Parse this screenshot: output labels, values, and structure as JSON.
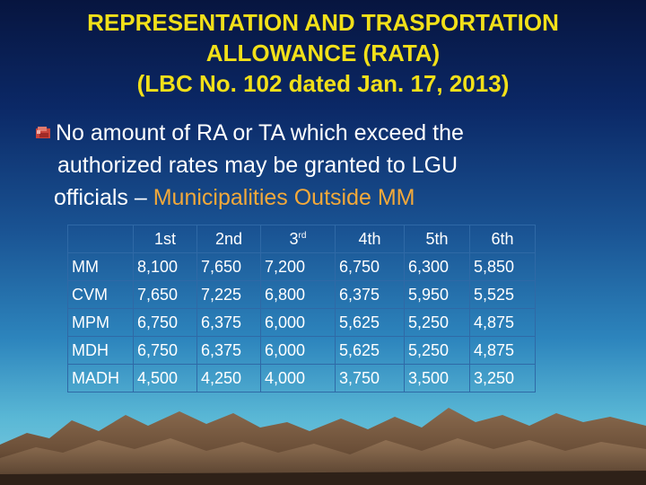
{
  "title": {
    "line1": "REPRESENTATION AND TRASPORTATION",
    "line2": "ALLOWANCE (RATA)",
    "line3": "(LBC No. 102 dated Jan. 17, 2013)"
  },
  "bullet": {
    "icon": "bullet-icon",
    "line1": "No amount of RA or TA which exceed the",
    "line2": "authorized rates may be granted to LGU",
    "line3_prefix": "officials – ",
    "line3_highlight": "Municipalities Outside MM"
  },
  "colors": {
    "title": "#f2e019",
    "text": "#ffffff",
    "highlight": "#f3a93a",
    "table_border": "#2f69a6"
  },
  "table": {
    "headers": [
      {
        "text": "1st",
        "sup": ""
      },
      {
        "text": "2nd",
        "sup": ""
      },
      {
        "text": "3",
        "sup": "rd"
      },
      {
        "text": "4th",
        "sup": ""
      },
      {
        "text": "5th",
        "sup": ""
      },
      {
        "text": "6th",
        "sup": ""
      }
    ],
    "rows": [
      {
        "label": "MM",
        "values": [
          "8,100",
          "7,650",
          "7,200",
          "6,750",
          "6,300",
          "5,850"
        ]
      },
      {
        "label": "CVM",
        "values": [
          "7,650",
          "7,225",
          "6,800",
          "6,375",
          "5,950",
          "5,525"
        ]
      },
      {
        "label": "MPM",
        "values": [
          "6,750",
          "6,375",
          "6,000",
          "5,625",
          "5,250",
          "4,875"
        ]
      },
      {
        "label": "MDH",
        "values": [
          "6,750",
          "6,375",
          "6,000",
          "5,625",
          "5,250",
          "4,875"
        ]
      },
      {
        "label": "MADH",
        "values": [
          "4,500",
          "4,250",
          "4,000",
          "3,750",
          "3,500",
          "3,250"
        ]
      }
    ]
  }
}
